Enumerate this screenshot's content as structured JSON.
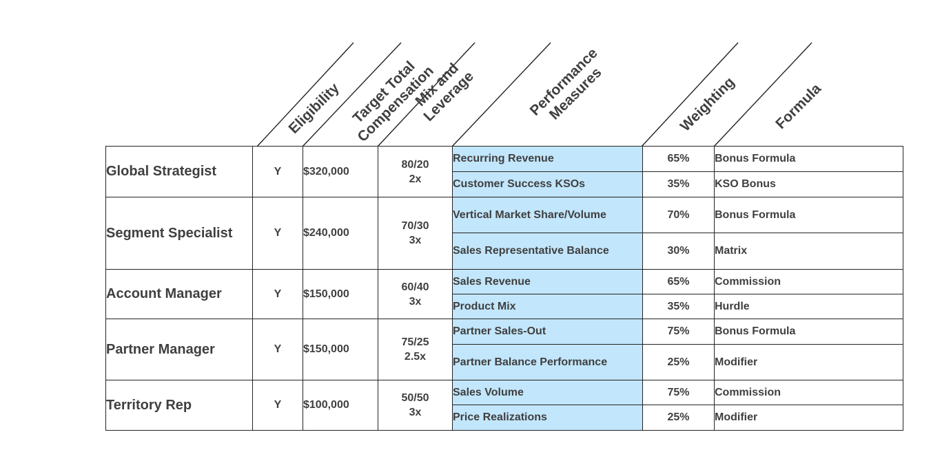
{
  "headers": {
    "eligibility": [
      "Eligibility"
    ],
    "ttc": [
      "Target Total",
      "Compensation"
    ],
    "mix": [
      "Mix and",
      "Leverage"
    ],
    "measures": [
      "Performance",
      "Measures"
    ],
    "weighting": [
      "Weighting"
    ],
    "formula": [
      "Formula"
    ]
  },
  "roles": [
    {
      "name": "Global Strategist",
      "eligibility": "Y",
      "ttc": "$320,000",
      "mix": "80/20",
      "leverage": "2x",
      "measures": [
        {
          "measure": "Recurring Revenue",
          "weight": "65%",
          "formula": "Bonus Formula"
        },
        {
          "measure": "Customer Success KSOs",
          "weight": "35%",
          "formula": "KSO Bonus"
        }
      ]
    },
    {
      "name": "Segment Specialist",
      "eligibility": "Y",
      "ttc": "$240,000",
      "mix": "70/30",
      "leverage": "3x",
      "measures": [
        {
          "measure": "Vertical Market Share/Volume",
          "weight": "70%",
          "formula": "Bonus Formula"
        },
        {
          "measure": "Sales Representative Balance",
          "weight": "30%",
          "formula": "Matrix"
        }
      ]
    },
    {
      "name": "Account Manager",
      "eligibility": "Y",
      "ttc": "$150,000",
      "mix": "60/40",
      "leverage": "3x",
      "measures": [
        {
          "measure": "Sales Revenue",
          "weight": "65%",
          "formula": "Commission"
        },
        {
          "measure": "Product Mix",
          "weight": "35%",
          "formula": "Hurdle"
        }
      ]
    },
    {
      "name": "Partner Manager",
      "eligibility": "Y",
      "ttc": "$150,000",
      "mix": "75/25",
      "leverage": "2.5x",
      "measures": [
        {
          "measure": "Partner Sales-Out",
          "weight": "75%",
          "formula": "Bonus Formula"
        },
        {
          "measure": "Partner Balance Performance",
          "weight": "25%",
          "formula": "Modifier"
        }
      ]
    },
    {
      "name": "Territory Rep",
      "eligibility": "Y",
      "ttc": "$100,000",
      "mix": "50/50",
      "leverage": "3x",
      "measures": [
        {
          "measure": "Sales Volume",
          "weight": "75%",
          "formula": "Commission"
        },
        {
          "measure": "Price Realizations",
          "weight": "25%",
          "formula": "Modifier"
        }
      ]
    }
  ],
  "colors": {
    "measure_fill": "#c2e6fb",
    "text": "#3f3f3f",
    "border": "#222222"
  }
}
